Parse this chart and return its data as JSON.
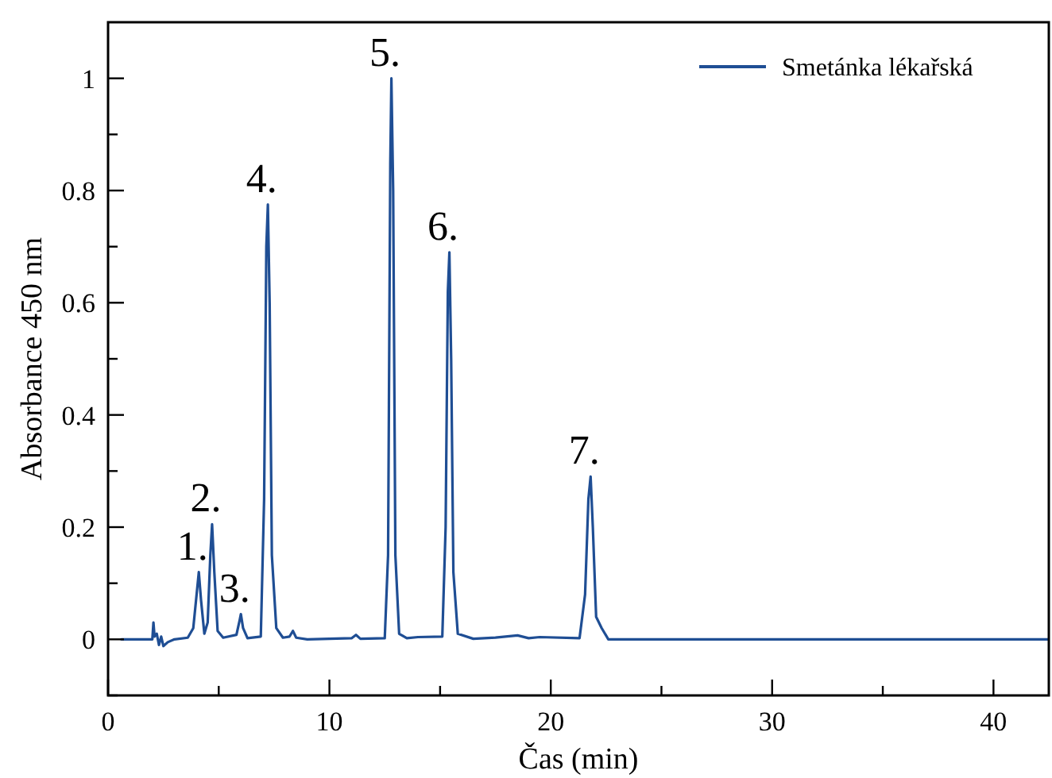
{
  "chart_data": {
    "type": "line",
    "xlabel": "Čas (min)",
    "ylabel": "Absorbance 450 nm",
    "xlim": [
      0,
      42.5
    ],
    "ylim": [
      -0.1,
      1.1
    ],
    "xticks": [
      0,
      {
        "value": 5,
        "label": null
      },
      10,
      {
        "value": 15,
        "label": null
      },
      20,
      {
        "value": 25,
        "label": null
      },
      30,
      {
        "value": 35,
        "label": null
      },
      40
    ],
    "yticks": [
      {
        "value": -0.1,
        "label": null
      },
      0,
      {
        "value": 0.1,
        "label": null
      },
      0.2,
      {
        "value": 0.3,
        "label": null
      },
      0.4,
      {
        "value": 0.5,
        "label": null
      },
      0.6,
      {
        "value": 0.7,
        "label": null
      },
      0.8,
      {
        "value": 0.9,
        "label": null
      },
      1
    ],
    "grid": false,
    "legend": "top right",
    "marker": "none",
    "line_style": "solid",
    "series": [
      {
        "name": "Smetánka lékařská",
        "color": "#1f4e94",
        "x": [
          0.6,
          1.0,
          2.0,
          2.05,
          2.1,
          2.2,
          2.3,
          2.4,
          2.5,
          2.7,
          3.0,
          3.6,
          3.85,
          4.0,
          4.1,
          4.2,
          4.35,
          4.5,
          4.62,
          4.7,
          4.8,
          4.95,
          5.2,
          5.8,
          5.95,
          6.0,
          6.1,
          6.3,
          6.9,
          7.05,
          7.15,
          7.22,
          7.3,
          7.4,
          7.6,
          7.9,
          8.2,
          8.35,
          8.5,
          9,
          11,
          11.2,
          11.4,
          12.5,
          12.65,
          12.75,
          12.8,
          12.88,
          12.98,
          13.15,
          13.5,
          14,
          15.1,
          15.25,
          15.35,
          15.42,
          15.5,
          15.6,
          15.8,
          16.5,
          17.5,
          18.5,
          19,
          19.5,
          21.3,
          21.55,
          21.7,
          21.8,
          21.9,
          22.05,
          22.3,
          22.6,
          42.5
        ],
        "values": [
          0,
          0,
          0,
          0.03,
          0.005,
          0.01,
          -0.01,
          0.005,
          -0.012,
          -0.005,
          0,
          0.003,
          0.02,
          0.08,
          0.12,
          0.07,
          0.01,
          0.03,
          0.15,
          0.205,
          0.12,
          0.015,
          0.003,
          0.008,
          0.035,
          0.045,
          0.02,
          0.002,
          0.005,
          0.25,
          0.7,
          0.775,
          0.6,
          0.15,
          0.02,
          0.003,
          0.005,
          0.015,
          0.003,
          0,
          0.002,
          0.008,
          0.001,
          0.002,
          0.15,
          0.85,
          1.0,
          0.8,
          0.15,
          0.01,
          0.002,
          0.004,
          0.005,
          0.2,
          0.62,
          0.69,
          0.5,
          0.12,
          0.01,
          0.001,
          0.003,
          0.007,
          0.002,
          0.004,
          0.002,
          0.08,
          0.25,
          0.29,
          0.2,
          0.04,
          0.02,
          0,
          0
        ]
      }
    ],
    "annotations": [
      {
        "text": "1.",
        "x": 4.1,
        "y": 0.12
      },
      {
        "text": "2.",
        "x": 4.7,
        "y": 0.205
      },
      {
        "text": "3.",
        "x": 6.0,
        "y": 0.045
      },
      {
        "text": "4.",
        "x": 7.22,
        "y": 0.775
      },
      {
        "text": "5.",
        "x": 12.8,
        "y": 1.0
      },
      {
        "text": "6.",
        "x": 15.42,
        "y": 0.69
      },
      {
        "text": "7.",
        "x": 21.8,
        "y": 0.29
      }
    ]
  }
}
